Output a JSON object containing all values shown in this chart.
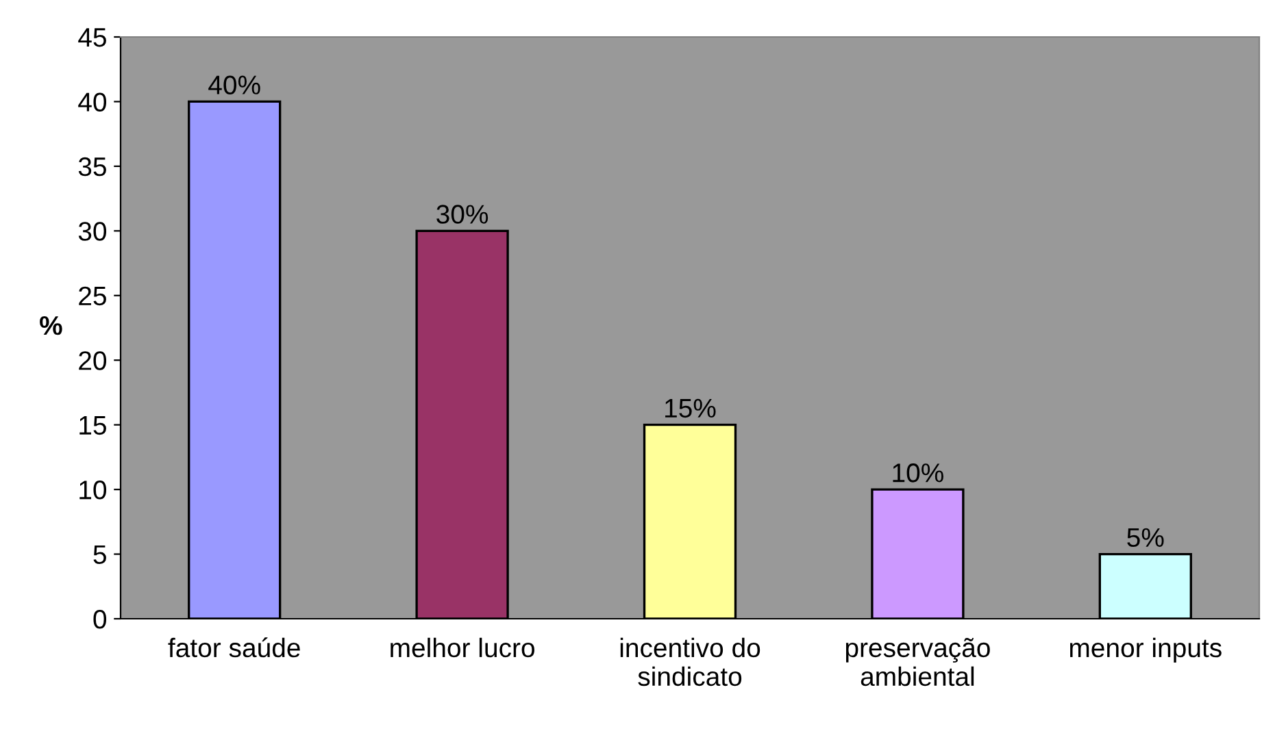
{
  "chart_data": {
    "type": "bar",
    "ylabel": "%",
    "categories": [
      "fator saúde",
      "melhor lucro",
      "incentivo do\nsindicato",
      "preservação\nambiental",
      "menor inputs"
    ],
    "values": [
      40,
      30,
      15,
      10,
      5
    ],
    "colors": [
      "#9999ff",
      "#993366",
      "#ffff99",
      "#cc99ff",
      "#ccffff"
    ],
    "value_labels": [
      "40%",
      "30%",
      "15%",
      "10%",
      "5%"
    ],
    "ylim": [
      0,
      45
    ],
    "yticks": [
      0,
      5,
      10,
      15,
      20,
      25,
      30,
      35,
      40,
      45
    ],
    "grid": false,
    "legend": false
  }
}
